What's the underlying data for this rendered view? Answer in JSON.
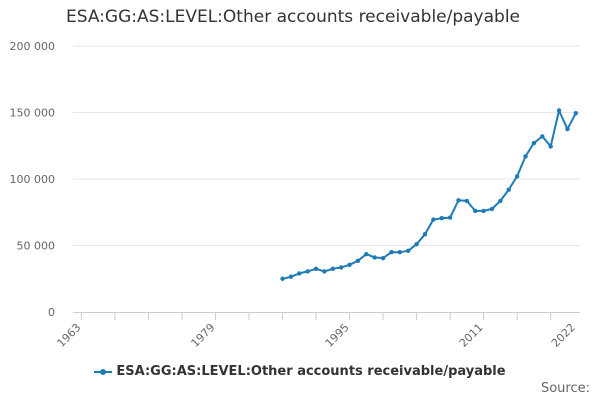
{
  "chart_data": {
    "type": "line",
    "title": "ESA:GG:AS:LEVEL:Other accounts receivable/payable",
    "xlabel": "",
    "ylabel": "",
    "xlim": [
      1962,
      2022.5
    ],
    "ylim": [
      0,
      200000
    ],
    "y_ticks": [
      {
        "value": 0,
        "label": "0"
      },
      {
        "value": 50000,
        "label": "50 000"
      },
      {
        "value": 100000,
        "label": "100 000"
      },
      {
        "value": 150000,
        "label": "150 000"
      },
      {
        "value": 200000,
        "label": "200 000"
      }
    ],
    "x_ticks": [
      {
        "value": 1963,
        "label": "1963"
      },
      {
        "value": 1979,
        "label": "1979"
      },
      {
        "value": 1995,
        "label": "1995"
      },
      {
        "value": 2011,
        "label": "2011"
      },
      {
        "value": 2022,
        "label": "2022"
      }
    ],
    "x_minor_ticks": [
      1963,
      1967,
      1971,
      1975,
      1979,
      1983,
      1987,
      1991,
      1995,
      1999,
      2003,
      2007,
      2011,
      2015,
      2019
    ],
    "grid": true,
    "legend_position": "bottom",
    "color": "#1f7bb6",
    "series": [
      {
        "name": "ESA:GG:AS:LEVEL:Other accounts receivable/payable",
        "x": [
          1987,
          1988,
          1989,
          1990,
          1991,
          1992,
          1993,
          1994,
          1995,
          1996,
          1997,
          1998,
          1999,
          2000,
          2001,
          2002,
          2003,
          2004,
          2005,
          2006,
          2007,
          2008,
          2009,
          2010,
          2011,
          2012,
          2013,
          2014,
          2015,
          2016,
          2017,
          2018,
          2019,
          2020,
          2021,
          2022
        ],
        "y": [
          25000,
          26500,
          29000,
          30500,
          32500,
          30500,
          32500,
          33500,
          35500,
          38500,
          43500,
          41000,
          40500,
          45000,
          45000,
          46000,
          51000,
          58500,
          69500,
          70500,
          71000,
          84000,
          83500,
          76000,
          76000,
          77500,
          83500,
          92000,
          102000,
          117000,
          127000,
          132000,
          124500,
          151500,
          137500,
          149500
        ]
      }
    ]
  },
  "legend": {
    "label": "ESA:GG:AS:LEVEL:Other accounts receivable/payable"
  },
  "source": {
    "label": "Source:"
  }
}
